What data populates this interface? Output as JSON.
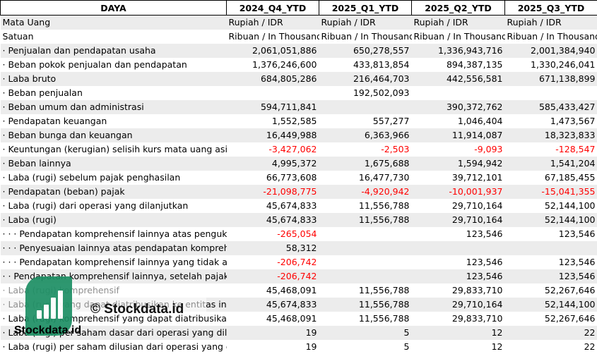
{
  "header": [
    "DAYA",
    "2024_Q4_YTD",
    "2025_Q1_YTD",
    "2025_Q2_YTD",
    "2025_Q3_YTD"
  ],
  "rows": [
    {
      "label": "Mata Uang",
      "indent": 0,
      "cells": [
        "Rupiah / IDR",
        "Rupiah / IDR",
        "Rupiah / IDR",
        "Rupiah / IDR"
      ],
      "kind": "txt"
    },
    {
      "label": "Satuan",
      "indent": 0,
      "cells": [
        "Ribuan / In Thousand",
        "Ribuan / In Thousand",
        "Ribuan / In Thousand",
        "Ribuan / In Thousand"
      ],
      "kind": "txt"
    },
    {
      "label": "· Penjualan dan pendapatan usaha",
      "indent": 0,
      "cells": [
        "2,061,051,886",
        "650,278,557",
        "1,336,943,716",
        "2,001,384,940"
      ]
    },
    {
      "label": "· Beban pokok penjualan dan pendapatan",
      "indent": 0,
      "cells": [
        "1,376,246,600",
        "433,813,854",
        "894,387,135",
        "1,330,246,041"
      ]
    },
    {
      "label": "· Laba bruto",
      "indent": 0,
      "cells": [
        "684,805,286",
        "216,464,703",
        "442,556,581",
        "671,138,899"
      ]
    },
    {
      "label": "· Beban penjualan",
      "indent": 0,
      "cells": [
        "",
        "192,502,093",
        "",
        ""
      ]
    },
    {
      "label": "· Beban umum dan administrasi",
      "indent": 0,
      "cells": [
        "594,711,841",
        "",
        "390,372,762",
        "585,433,427"
      ]
    },
    {
      "label": "· Pendapatan keuangan",
      "indent": 0,
      "cells": [
        "1,552,585",
        "557,277",
        "1,046,404",
        "1,473,567"
      ]
    },
    {
      "label": "· Beban bunga dan keuangan",
      "indent": 0,
      "cells": [
        "16,449,988",
        "6,363,966",
        "11,914,087",
        "18,323,833"
      ]
    },
    {
      "label": "· Keuntungan (kerugian) selisih kurs mata uang asing",
      "indent": 0,
      "cells": [
        "-3,427,062",
        "-2,503",
        "-9,093",
        "-128,547"
      ]
    },
    {
      "label": "· Beban lainnya",
      "indent": 0,
      "cells": [
        "4,995,372",
        "1,675,688",
        "1,594,942",
        "1,541,204"
      ]
    },
    {
      "label": "· Laba (rugi) sebelum pajak penghasilan",
      "indent": 0,
      "cells": [
        "66,773,608",
        "16,477,730",
        "39,712,101",
        "67,185,455"
      ]
    },
    {
      "label": "· Pendapatan (beban) pajak",
      "indent": 0,
      "cells": [
        "-21,098,775",
        "-4,920,942",
        "-10,001,937",
        "-15,041,355"
      ]
    },
    {
      "label": "· Laba (rugi) dari operasi yang dilanjutkan",
      "indent": 0,
      "cells": [
        "45,674,833",
        "11,556,788",
        "29,710,164",
        "52,144,100"
      ]
    },
    {
      "label": "· Laba (rugi)",
      "indent": 0,
      "cells": [
        "45,674,833",
        "11,556,788",
        "29,710,164",
        "52,144,100"
      ]
    },
    {
      "label": "· · · Pendapatan komprehensif lainnya atas pengukuran",
      "indent": 0,
      "cells": [
        "-265,054",
        "",
        "123,546",
        "123,546"
      ]
    },
    {
      "label": "· · · Penyesuaian lainnya atas pendapatan komprehensif",
      "indent": 0,
      "cells": [
        "58,312",
        "",
        "",
        ""
      ]
    },
    {
      "label": "· · · Pendapatan komprehensif lainnya yang tidak akan",
      "indent": 0,
      "cells": [
        "-206,742",
        "",
        "123,546",
        "123,546"
      ]
    },
    {
      "label": "· · Pendapatan komprehensif lainnya, setelah pajak",
      "indent": 0,
      "cells": [
        "-206,742",
        "",
        "123,546",
        "123,546"
      ]
    },
    {
      "label": "· Laba (rugi) komprehensif",
      "indent": 0,
      "cells": [
        "45,468,091",
        "11,556,788",
        "29,833,710",
        "52,267,646"
      ]
    },
    {
      "label": "· Laba (rugi) yang dapat diatribusikan ke entitas induk",
      "indent": 0,
      "cells": [
        "45,674,833",
        "11,556,788",
        "29,710,164",
        "52,144,100"
      ]
    },
    {
      "label": "· Laba (rugi) komprehensif yang dapat diatribusikan",
      "indent": 0,
      "cells": [
        "45,468,091",
        "11,556,788",
        "29,833,710",
        "52,267,646"
      ]
    },
    {
      "label": "· Laba (rugi) per saham dasar dari operasi yang dilanjutkan",
      "indent": 0,
      "cells": [
        "19",
        "5",
        "12",
        "22"
      ]
    },
    {
      "label": "· Laba (rugi) per saham dilusian dari operasi yang dilanjutkan",
      "indent": 0,
      "cells": [
        "19",
        "5",
        "12",
        "22"
      ]
    }
  ],
  "watermark": {
    "center_text": "© Stockdata.id",
    "brand_text": "Stockdata.id",
    "logo_color": "#1d8f64"
  },
  "colors": {
    "negative": "#ff0000",
    "stripe": "#ececec"
  }
}
